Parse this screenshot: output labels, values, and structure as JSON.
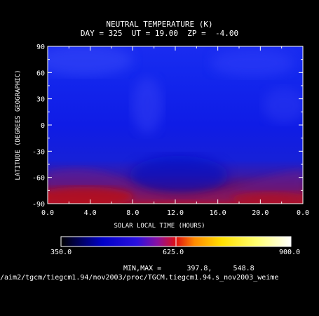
{
  "chart_data": {
    "type": "heatmap",
    "title": "NEUTRAL TEMPERATURE (K)",
    "subtitle": "DAY = 325  UT = 19.00  ZP =  -4.00",
    "xlabel": "SOLAR LOCAL TIME (HOURS)",
    "ylabel": "LATITUDE (DEGREES GEOGRAPHIC)",
    "xlim": [
      0,
      24
    ],
    "ylim": [
      -90,
      90
    ],
    "x_ticks": [
      "0.0",
      "4.0",
      "8.0",
      "12.0",
      "16.0",
      "20.0",
      "0.0"
    ],
    "y_ticks": [
      "90",
      "60",
      "30",
      "0",
      "-30",
      "-60",
      "-90"
    ],
    "colorbar": {
      "min_label": "350.0",
      "mid_label": "625.0",
      "max_label": "900.0",
      "range": [
        350,
        900
      ]
    },
    "minmax_label": "MIN,MAX =",
    "min_value": "397.8,",
    "max_value": "548.8",
    "file_path": "/aim2/tgcm/tiegcm1.94/nov2003/proc/TGCM.tiegcm1.94.s_nov2003_weime"
  }
}
